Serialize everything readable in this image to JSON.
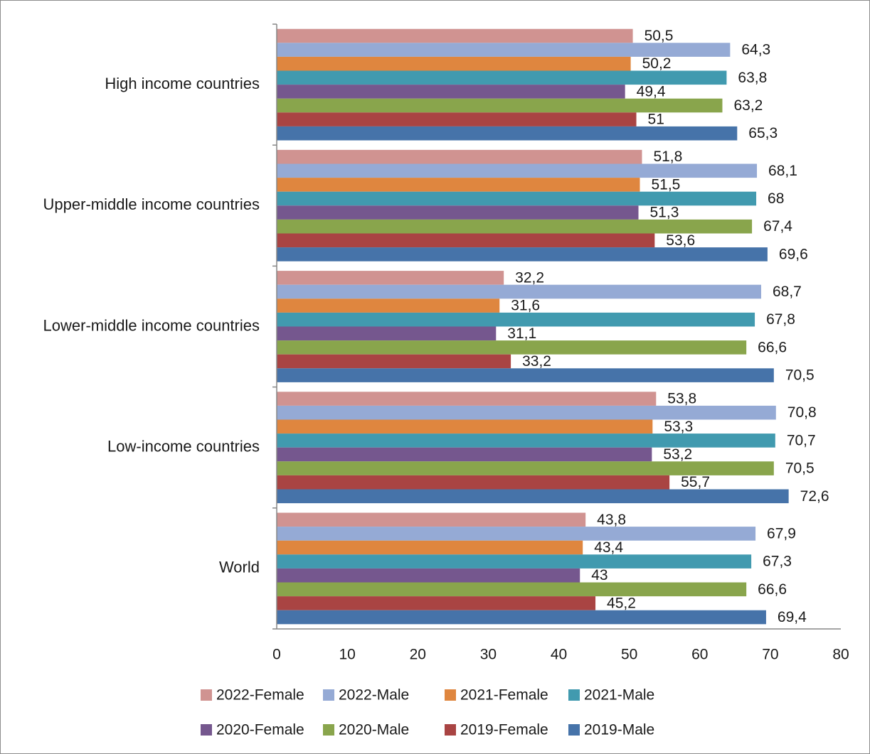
{
  "chart_data": {
    "type": "bar",
    "orientation": "horizontal",
    "categories": [
      "High income countries",
      "Upper-middle income countries",
      "Lower-middle income countries",
      "Low-income countries",
      "World"
    ],
    "series": [
      {
        "name": "2022-Female",
        "color": "#d09391",
        "values": [
          50.5,
          51.8,
          32.2,
          53.8,
          43.8
        ],
        "labels": [
          "50,5",
          "51,8",
          "32,2",
          "53,8",
          "43,8"
        ]
      },
      {
        "name": "2022-Male",
        "color": "#95aad5",
        "values": [
          64.3,
          68.1,
          68.7,
          70.8,
          67.9
        ],
        "labels": [
          "64,3",
          "68,1",
          "68,7",
          "70,8",
          "67,9"
        ]
      },
      {
        "name": "2021-Female",
        "color": "#df863f",
        "values": [
          50.2,
          51.5,
          31.6,
          53.3,
          43.4
        ],
        "labels": [
          "50,2",
          "51,5",
          "31,6",
          "53,3",
          "43,4"
        ]
      },
      {
        "name": "2021-Male",
        "color": "#419aaf",
        "values": [
          63.8,
          68,
          67.8,
          70.7,
          67.3
        ],
        "labels": [
          "63,8",
          "68",
          "67,8",
          "70,7",
          "67,3"
        ]
      },
      {
        "name": "2020-Female",
        "color": "#75578e",
        "values": [
          49.4,
          51.3,
          31.1,
          53.2,
          43
        ],
        "labels": [
          "49,4",
          "51,3",
          "31,1",
          "53,2",
          "43"
        ]
      },
      {
        "name": "2020-Male",
        "color": "#89a54c",
        "values": [
          63.2,
          67.4,
          66.6,
          70.5,
          66.6
        ],
        "labels": [
          "63,2",
          "67,4",
          "66,6",
          "70,5",
          "66,6"
        ]
      },
      {
        "name": "2019-Female",
        "color": "#a94443",
        "values": [
          51,
          53.6,
          33.2,
          55.7,
          45.2
        ],
        "labels": [
          "51",
          "53,6",
          "33,2",
          "55,7",
          "45,2"
        ]
      },
      {
        "name": "2019-Male",
        "color": "#4673a9",
        "values": [
          65.3,
          69.6,
          70.5,
          72.6,
          69.4
        ],
        "labels": [
          "65,3",
          "69,6",
          "70,5",
          "72,6",
          "69,4"
        ]
      }
    ],
    "xlim": [
      0,
      80
    ],
    "x_ticks": [
      0,
      10,
      20,
      30,
      40,
      50,
      60,
      70,
      80
    ],
    "x_tick_labels": [
      "0",
      "10",
      "20",
      "30",
      "40",
      "50",
      "60",
      "70",
      "80"
    ],
    "title": "",
    "xlabel": "",
    "ylabel": "",
    "grid": false,
    "legend": {
      "position": "bottom",
      "rows": [
        [
          "2022-Female",
          "2022-Male",
          "2021-Female",
          "2021-Male"
        ],
        [
          "2020-Female",
          "2020-Male",
          "2019-Female",
          "2019-Male"
        ]
      ]
    },
    "axis_color": "#868686"
  }
}
